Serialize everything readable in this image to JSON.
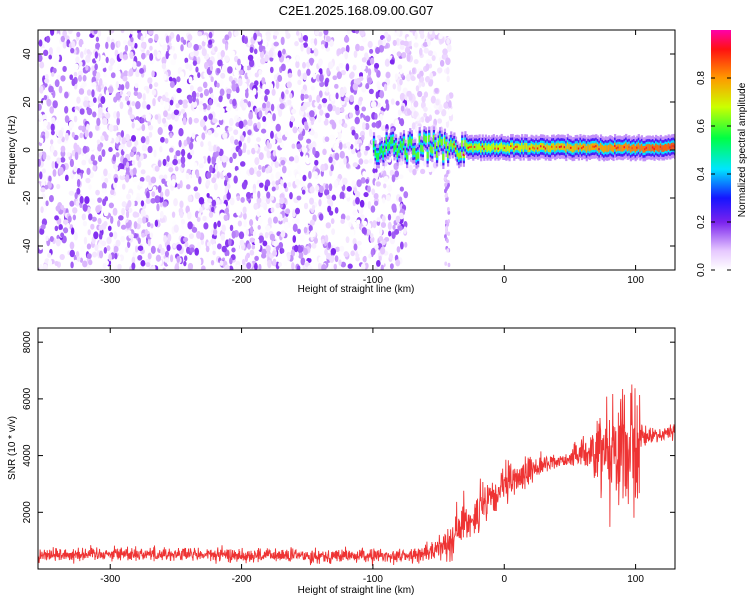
{
  "title": "C2E1.2025.168.09.00.G07",
  "chart_data": [
    {
      "type": "heatmap",
      "xlabel": "Height of straight line (km)",
      "ylabel": "Frequency (Hz)",
      "xlim": [
        -355,
        130
      ],
      "ylim": [
        -50,
        50
      ],
      "xticks": [
        -300,
        -200,
        -100,
        0,
        100
      ],
      "yticks": [
        -40,
        -20,
        0,
        20,
        40
      ],
      "colorbar": {
        "label": "Normalized spectral amplitude",
        "range": [
          0,
          1
        ],
        "ticks": [
          0.0,
          0.2,
          0.4,
          0.6,
          0.8
        ]
      },
      "regions": [
        {
          "x_range": [
            -355,
            -75
          ],
          "f_range": [
            -50,
            50
          ],
          "amplitude": [
            0.0,
            0.2
          ]
        },
        {
          "x_range": [
            -75,
            -40
          ],
          "f_range": [
            -10,
            50
          ],
          "amplitude": [
            0.0,
            0.1
          ]
        },
        {
          "x_range": [
            -100,
            130
          ],
          "f_range": [
            -5,
            5
          ],
          "amplitude": [
            0.2,
            1.0
          ]
        }
      ],
      "peak_frequency_hz": 1
    },
    {
      "type": "line",
      "xlabel": "Height of straight line (km)",
      "ylabel": "SNR (10 * v/v)",
      "xlim": [
        -355,
        130
      ],
      "ylim": [
        0,
        8500
      ],
      "xticks": [
        -300,
        -200,
        -100,
        0,
        100
      ],
      "yticks": [
        2000,
        4000,
        6000,
        8000
      ],
      "series": [
        {
          "color": "#ee3333",
          "x": [
            -355,
            -300,
            -250,
            -200,
            -150,
            -100,
            -70,
            -55,
            -40,
            -30,
            -20,
            -10,
            0,
            10,
            20,
            30,
            40,
            50,
            60,
            70,
            80,
            90,
            100,
            105,
            110,
            120,
            130
          ],
          "mean": [
            500,
            550,
            520,
            480,
            470,
            460,
            470,
            600,
            1100,
            1700,
            2000,
            2400,
            2900,
            3200,
            3500,
            3700,
            3800,
            3900,
            4100,
            4200,
            4350,
            4300,
            4400,
            4600,
            4700,
            4750,
            4850
          ],
          "spread": [
            250,
            250,
            250,
            250,
            250,
            250,
            250,
            300,
            700,
            900,
            900,
            700,
            700,
            600,
            500,
            300,
            250,
            300,
            500,
            1200,
            2000,
            2500,
            3000,
            400,
            250,
            250,
            250
          ]
        }
      ]
    }
  ]
}
